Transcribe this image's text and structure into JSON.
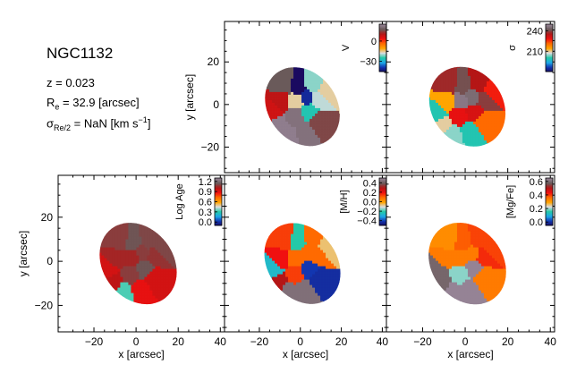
{
  "info": {
    "galaxy": "NGC1132",
    "z_label": "z = 0.023",
    "re_sym": "R",
    "re_sub": "e",
    "re_rest": " = 32.9 [arcsec]",
    "sigma_sym": "σ",
    "sigma_sub": "Re/2",
    "sigma_rest": " = NaN [km s",
    "sigma_sup": "−1",
    "sigma_close": "]"
  },
  "chart_data": [
    {
      "type": "heatmap",
      "panel": "velocity",
      "xlabel": "",
      "ylabel": "y [arcsec]",
      "xlim": [
        -37,
        42
      ],
      "ylim": [
        -32,
        39
      ],
      "xticks": [
        "-20",
        "0",
        "20",
        "40"
      ],
      "yticks": [
        "-20",
        "0",
        "20"
      ],
      "colorbar": {
        "label": "V",
        "ticks": [
          "0",
          "-30"
        ],
        "tick_values": [
          0,
          -30
        ],
        "range": [
          -45,
          25
        ],
        "colormap": "spectral"
      },
      "bins": [
        {
          "x": -2,
          "y": 2,
          "v": -15
        },
        {
          "x": 3,
          "y": 4,
          "v": -40
        },
        {
          "x": -1,
          "y": 8,
          "v": -45
        },
        {
          "x": -8,
          "y": 9,
          "v": 18
        },
        {
          "x": 6,
          "y": 9,
          "v": -20
        },
        {
          "x": 9,
          "y": 3,
          "v": -18
        },
        {
          "x": -9,
          "y": 2,
          "v": 10
        },
        {
          "x": -14,
          "y": -4,
          "v": 8
        },
        {
          "x": -11,
          "y": -10,
          "v": 24
        },
        {
          "x": -6,
          "y": -14,
          "v": 24
        },
        {
          "x": -2,
          "y": -6,
          "v": 22
        },
        {
          "x": 4,
          "y": -4,
          "v": -25
        },
        {
          "x": 8,
          "y": -8,
          "v": 16
        },
        {
          "x": 2,
          "y": -12,
          "v": 22
        },
        {
          "x": 12,
          "y": 6,
          "v": -15
        }
      ]
    },
    {
      "type": "heatmap",
      "panel": "dispersion",
      "xlabel": "",
      "ylabel": "",
      "xlim": [
        -37,
        42
      ],
      "ylim": [
        -32,
        39
      ],
      "xticks": [
        "-20",
        "0",
        "20",
        "40"
      ],
      "yticks": [
        "-20",
        "0",
        "20"
      ],
      "colorbar": {
        "label": "σ",
        "ticks": [
          "240",
          "210"
        ],
        "tick_values": [
          240,
          210
        ],
        "range": [
          180,
          250
        ],
        "colormap": "spectral"
      },
      "bins": [
        {
          "x": -2,
          "y": 2,
          "v": 248
        },
        {
          "x": 3,
          "y": 4,
          "v": 246
        },
        {
          "x": -1,
          "y": 8,
          "v": 242
        },
        {
          "x": -8,
          "y": 9,
          "v": 238
        },
        {
          "x": 6,
          "y": 9,
          "v": 236
        },
        {
          "x": 9,
          "y": 3,
          "v": 240
        },
        {
          "x": -9,
          "y": 2,
          "v": 215
        },
        {
          "x": -14,
          "y": -4,
          "v": 200
        },
        {
          "x": -11,
          "y": -10,
          "v": 210
        },
        {
          "x": -6,
          "y": -14,
          "v": 205
        },
        {
          "x": -2,
          "y": -6,
          "v": 230
        },
        {
          "x": 4,
          "y": -4,
          "v": 232
        },
        {
          "x": 8,
          "y": -8,
          "v": 222
        },
        {
          "x": 2,
          "y": -12,
          "v": 200
        },
        {
          "x": 12,
          "y": 6,
          "v": 228
        }
      ]
    },
    {
      "type": "heatmap",
      "panel": "age",
      "xlabel": "x [arcsec]",
      "ylabel": "y [arcsec]",
      "xlim": [
        -37,
        42
      ],
      "ylim": [
        -32,
        39
      ],
      "xticks": [
        "-20",
        "0",
        "20",
        "40"
      ],
      "yticks": [
        "-20",
        "0",
        "20"
      ],
      "colorbar": {
        "label": "Log Age",
        "ticks": [
          "1.2",
          "0.9",
          "0.6",
          "0.3",
          "0.0"
        ],
        "tick_values": [
          1.2,
          0.9,
          0.6,
          0.3,
          0.0
        ],
        "range": [
          -0.1,
          1.3
        ],
        "colormap": "spectral"
      },
      "bins": [
        {
          "x": -2,
          "y": 2,
          "v": 1.05
        },
        {
          "x": 3,
          "y": 4,
          "v": 1.1
        },
        {
          "x": -1,
          "y": 8,
          "v": 1.15
        },
        {
          "x": -8,
          "y": 9,
          "v": 1.1
        },
        {
          "x": 6,
          "y": 9,
          "v": 1.12
        },
        {
          "x": 9,
          "y": 3,
          "v": 1.08
        },
        {
          "x": -9,
          "y": 2,
          "v": 1.05
        },
        {
          "x": -14,
          "y": -4,
          "v": 0.95
        },
        {
          "x": -11,
          "y": -10,
          "v": 1.0
        },
        {
          "x": -6,
          "y": -14,
          "v": 0.35
        },
        {
          "x": -2,
          "y": -6,
          "v": 1.1
        },
        {
          "x": 4,
          "y": -4,
          "v": 1.15
        },
        {
          "x": 8,
          "y": -8,
          "v": 0.95
        },
        {
          "x": 2,
          "y": -12,
          "v": 0.9
        },
        {
          "x": 12,
          "y": 6,
          "v": 1.12
        }
      ]
    },
    {
      "type": "heatmap",
      "panel": "metallicity",
      "xlabel": "x [arcsec]",
      "ylabel": "",
      "xlim": [
        -37,
        42
      ],
      "ylim": [
        -32,
        39
      ],
      "xticks": [
        "-20",
        "0",
        "20",
        "40"
      ],
      "yticks": [
        "-20",
        "0",
        "20"
      ],
      "colorbar": {
        "label": "[M/H]",
        "ticks": [
          "0.4",
          "0.2",
          "0.0",
          "-0.2",
          "-0.4"
        ],
        "tick_values": [
          0.4,
          0.2,
          0.0,
          -0.2,
          -0.4
        ],
        "range": [
          -0.5,
          0.5
        ],
        "colormap": "spectral"
      },
      "bins": [
        {
          "x": -2,
          "y": 2,
          "v": 0.1
        },
        {
          "x": 3,
          "y": 4,
          "v": 0.1
        },
        {
          "x": -1,
          "y": 8,
          "v": -0.2
        },
        {
          "x": -8,
          "y": 9,
          "v": 0.15
        },
        {
          "x": 6,
          "y": 9,
          "v": 0.1
        },
        {
          "x": 9,
          "y": 3,
          "v": 0.1
        },
        {
          "x": -9,
          "y": 2,
          "v": 0.2
        },
        {
          "x": -14,
          "y": -4,
          "v": -0.25
        },
        {
          "x": -11,
          "y": -10,
          "v": 0.3
        },
        {
          "x": -6,
          "y": -14,
          "v": 0.45
        },
        {
          "x": -2,
          "y": -6,
          "v": 0.15
        },
        {
          "x": 4,
          "y": -4,
          "v": -0.4
        },
        {
          "x": 8,
          "y": -8,
          "v": -0.42
        },
        {
          "x": 2,
          "y": -12,
          "v": 0.45
        },
        {
          "x": 12,
          "y": 6,
          "v": -0.05
        }
      ]
    },
    {
      "type": "heatmap",
      "panel": "alpha-enhancement",
      "xlabel": "x [arcsec]",
      "ylabel": "",
      "xlim": [
        -37,
        42
      ],
      "ylim": [
        -32,
        39
      ],
      "xticks": [
        "-20",
        "0",
        "20",
        "40"
      ],
      "yticks": [
        "-20",
        "0",
        "20"
      ],
      "colorbar": {
        "label": "[Mg/Fe]",
        "ticks": [
          "0.6",
          "0.4",
          "0.2",
          "0.0"
        ],
        "tick_values": [
          0.6,
          0.4,
          0.2,
          0.0
        ],
        "range": [
          -0.05,
          0.65
        ],
        "colormap": "spectral"
      },
      "bins": [
        {
          "x": -2,
          "y": 2,
          "v": 0.35
        },
        {
          "x": 3,
          "y": 4,
          "v": 0.35
        },
        {
          "x": -1,
          "y": 8,
          "v": 0.38
        },
        {
          "x": -8,
          "y": 9,
          "v": 0.33
        },
        {
          "x": 6,
          "y": 9,
          "v": 0.4
        },
        {
          "x": 9,
          "y": 3,
          "v": 0.42
        },
        {
          "x": -9,
          "y": 2,
          "v": 0.35
        },
        {
          "x": -14,
          "y": -4,
          "v": 0.6
        },
        {
          "x": -11,
          "y": -10,
          "v": 0.6
        },
        {
          "x": -6,
          "y": -14,
          "v": 0.66
        },
        {
          "x": -2,
          "y": -6,
          "v": 0.2
        },
        {
          "x": 4,
          "y": -4,
          "v": 0.65
        },
        {
          "x": 8,
          "y": -8,
          "v": 0.35
        },
        {
          "x": 2,
          "y": -12,
          "v": 0.65
        },
        {
          "x": 12,
          "y": 6,
          "v": 0.4
        }
      ]
    }
  ]
}
